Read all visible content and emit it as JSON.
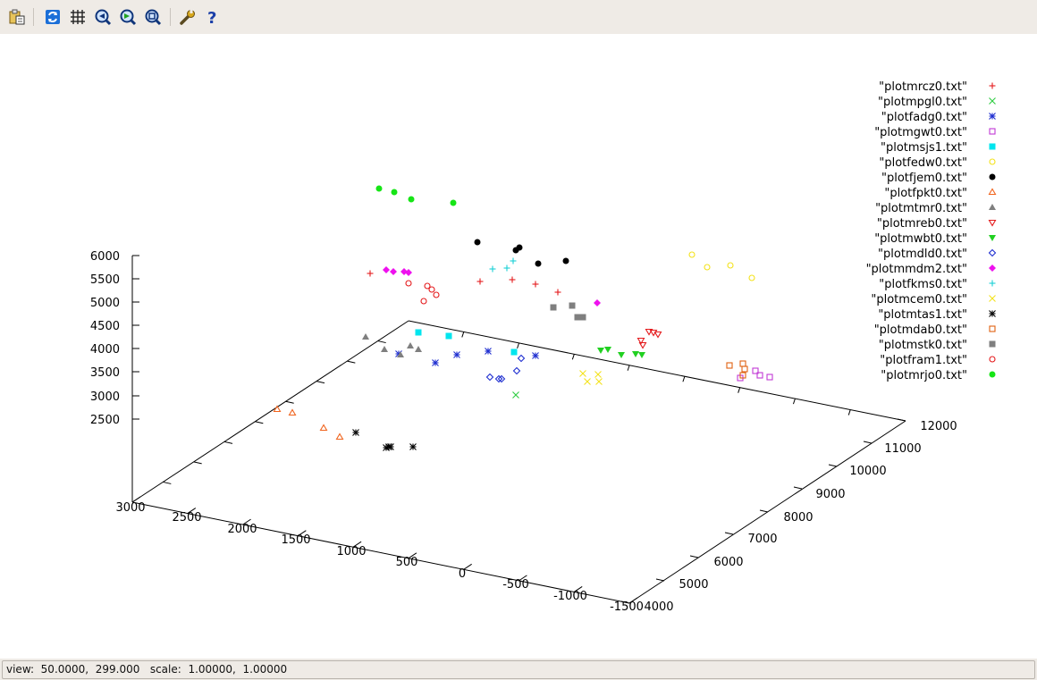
{
  "toolbar": {
    "buttons": [
      {
        "name": "copy-to-clipboard-icon"
      },
      {
        "name": "replot-icon"
      },
      {
        "name": "grid-icon"
      },
      {
        "name": "zoom-previous-icon"
      },
      {
        "name": "zoom-next-icon"
      },
      {
        "name": "autoscale-icon"
      },
      {
        "name": "settings-wrench-icon"
      },
      {
        "name": "help-icon"
      }
    ]
  },
  "status": {
    "view_label": "view:",
    "view_value": "50.0000,  299.000",
    "scale_label": "scale:",
    "scale_value": "1.00000,  1.00000"
  },
  "chart_data": {
    "type": "scatter",
    "dimensions": 3,
    "view_rotation": [
      50,
      299
    ],
    "view_scale": [
      1,
      1
    ],
    "x_ticks": [
      "3000",
      "2500",
      "2000",
      "1500",
      "1000",
      "500",
      "0",
      "-500",
      "-1000",
      "-1500"
    ],
    "y_ticks": [
      "4000",
      "5000",
      "6000",
      "7000",
      "8000",
      "9000",
      "10000",
      "11000",
      "12000"
    ],
    "z_ticks": [
      "6000",
      "5500",
      "5000",
      "4500",
      "4000",
      "3500",
      "3000",
      "2500"
    ],
    "xlim": [
      -1500,
      3000
    ],
    "ylim": [
      4000,
      12000
    ],
    "zlim": [
      2500,
      6000
    ],
    "legend_position": "top-right",
    "series": [
      {
        "name": "\"plotmrcz0.txt\"",
        "color": "#e41a1c",
        "marker": "plus"
      },
      {
        "name": "\"plotmpgl0.txt\"",
        "color": "#2ecc40",
        "marker": "cross"
      },
      {
        "name": "\"plotfadg0.txt\"",
        "color": "#1f2fd0",
        "marker": "star"
      },
      {
        "name": "\"plotmgwt0.txt\"",
        "color": "#c13ad6",
        "marker": "square-open"
      },
      {
        "name": "\"plotmsjs1.txt\"",
        "color": "#00e5ee",
        "marker": "square-filled"
      },
      {
        "name": "\"plotfedw0.txt\"",
        "color": "#f3e21b",
        "marker": "circle-open"
      },
      {
        "name": "\"plotfjem0.txt\"",
        "color": "#000000",
        "marker": "circle-filled"
      },
      {
        "name": "\"plotfpkt0.txt\"",
        "color": "#f0641e",
        "marker": "triangle-open"
      },
      {
        "name": "\"plotmtmr0.txt\"",
        "color": "#7f7f7f",
        "marker": "triangle-filled"
      },
      {
        "name": "\"plotmreb0.txt\"",
        "color": "#e41a1c",
        "marker": "triangle-down-open"
      },
      {
        "name": "\"plotmwbt0.txt\"",
        "color": "#21d021",
        "marker": "triangle-down-filled"
      },
      {
        "name": "\"plotmdld0.txt\"",
        "color": "#1f2fd0",
        "marker": "diamond-open"
      },
      {
        "name": "\"plotmmdm2.txt\"",
        "color": "#ee11ee",
        "marker": "diamond-filled"
      },
      {
        "name": "\"plotfkms0.txt\"",
        "color": "#19cfd6",
        "marker": "plus"
      },
      {
        "name": "\"plotmcem0.txt\"",
        "color": "#f3e21b",
        "marker": "cross"
      },
      {
        "name": "\"plotmtas1.txt\"",
        "color": "#000000",
        "marker": "star"
      },
      {
        "name": "\"plotmdab0.txt\"",
        "color": "#e06010",
        "marker": "square-open"
      },
      {
        "name": "\"plotmstk0.txt\"",
        "color": "#7f7f7f",
        "marker": "square-filled"
      },
      {
        "name": "\"plotfram1.txt\"",
        "color": "#e41a1c",
        "marker": "circle-open"
      },
      {
        "name": "\"plotmrjo0.txt\"",
        "color": "#16e516",
        "marker": "circle-filled"
      }
    ]
  }
}
